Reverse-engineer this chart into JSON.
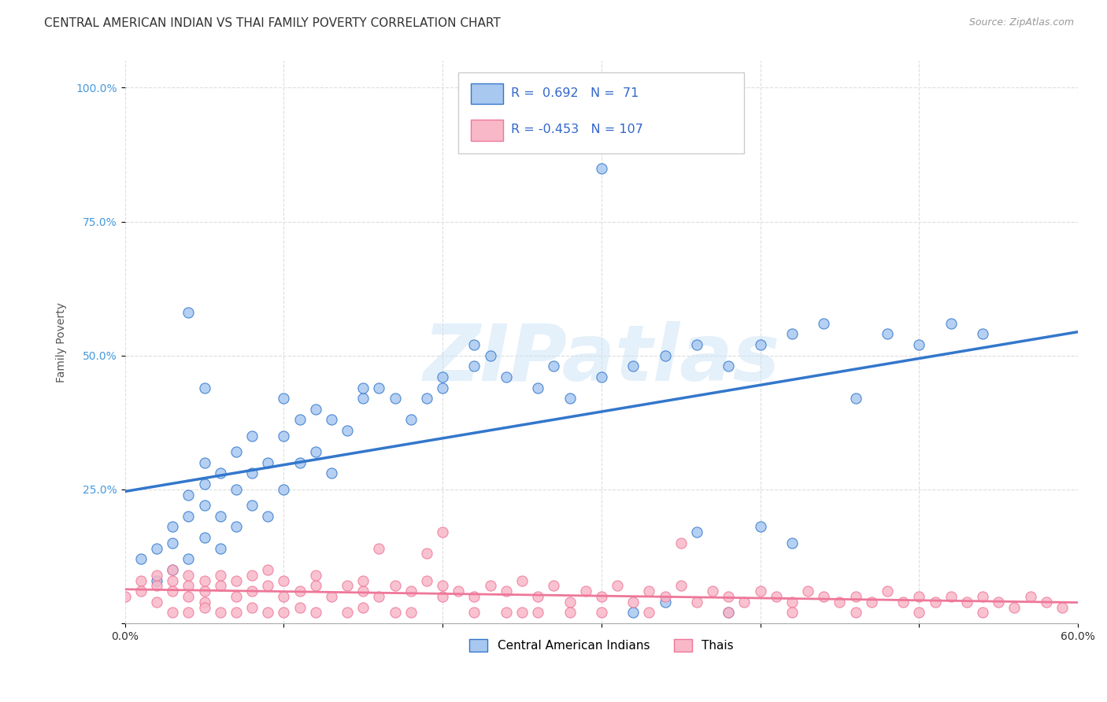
{
  "title": "CENTRAL AMERICAN INDIAN VS THAI FAMILY POVERTY CORRELATION CHART",
  "source": "Source: ZipAtlas.com",
  "ylabel": "Family Poverty",
  "xlim": [
    0.0,
    0.6
  ],
  "ylim": [
    0.0,
    1.05
  ],
  "xticks": [
    0.0,
    0.1,
    0.2,
    0.3,
    0.4,
    0.5,
    0.6
  ],
  "xticklabels": [
    "0.0%",
    "",
    "",
    "",
    "",
    "",
    "60.0%"
  ],
  "yticks": [
    0.0,
    0.25,
    0.5,
    0.75,
    1.0
  ],
  "yticklabels": [
    "",
    "25.0%",
    "50.0%",
    "75.0%",
    "100.0%"
  ],
  "legend_label1": "Central American Indians",
  "legend_label2": "Thais",
  "R1": 0.692,
  "N1": 71,
  "R2": -0.453,
  "N2": 107,
  "color1": "#a8c8f0",
  "color2": "#f8b8c8",
  "line_color1": "#3377cc",
  "line_color2": "#ee7799",
  "dashed_color": "#bbbbbb",
  "background_color": "#ffffff",
  "watermark": "ZIPatlas",
  "title_fontsize": 11,
  "axis_label_fontsize": 10,
  "tick_fontsize": 10,
  "scatter1_x": [
    0.01,
    0.02,
    0.02,
    0.03,
    0.03,
    0.03,
    0.04,
    0.04,
    0.04,
    0.04,
    0.05,
    0.05,
    0.05,
    0.05,
    0.05,
    0.06,
    0.06,
    0.06,
    0.07,
    0.07,
    0.07,
    0.08,
    0.08,
    0.08,
    0.09,
    0.09,
    0.1,
    0.1,
    0.1,
    0.11,
    0.11,
    0.12,
    0.12,
    0.13,
    0.13,
    0.14,
    0.15,
    0.15,
    0.16,
    0.17,
    0.18,
    0.19,
    0.2,
    0.2,
    0.22,
    0.22,
    0.23,
    0.24,
    0.26,
    0.27,
    0.28,
    0.3,
    0.32,
    0.34,
    0.36,
    0.38,
    0.4,
    0.42,
    0.44,
    0.46,
    0.48,
    0.5,
    0.52,
    0.54,
    0.3,
    0.32,
    0.34,
    0.36,
    0.38,
    0.4,
    0.42
  ],
  "scatter1_y": [
    0.12,
    0.08,
    0.14,
    0.1,
    0.15,
    0.18,
    0.12,
    0.2,
    0.24,
    0.58,
    0.16,
    0.22,
    0.26,
    0.3,
    0.44,
    0.14,
    0.2,
    0.28,
    0.18,
    0.25,
    0.32,
    0.22,
    0.28,
    0.35,
    0.2,
    0.3,
    0.25,
    0.35,
    0.42,
    0.3,
    0.38,
    0.32,
    0.4,
    0.28,
    0.38,
    0.36,
    0.42,
    0.44,
    0.44,
    0.42,
    0.38,
    0.42,
    0.44,
    0.46,
    0.48,
    0.52,
    0.5,
    0.46,
    0.44,
    0.48,
    0.42,
    0.46,
    0.48,
    0.5,
    0.52,
    0.48,
    0.52,
    0.54,
    0.56,
    0.42,
    0.54,
    0.52,
    0.56,
    0.54,
    0.85,
    0.02,
    0.04,
    0.17,
    0.02,
    0.18,
    0.15
  ],
  "scatter2_x": [
    0.0,
    0.01,
    0.01,
    0.02,
    0.02,
    0.02,
    0.03,
    0.03,
    0.03,
    0.04,
    0.04,
    0.04,
    0.05,
    0.05,
    0.05,
    0.06,
    0.06,
    0.07,
    0.07,
    0.08,
    0.08,
    0.09,
    0.09,
    0.1,
    0.1,
    0.11,
    0.12,
    0.12,
    0.13,
    0.14,
    0.15,
    0.15,
    0.16,
    0.17,
    0.18,
    0.19,
    0.2,
    0.2,
    0.21,
    0.22,
    0.23,
    0.24,
    0.25,
    0.26,
    0.27,
    0.28,
    0.29,
    0.3,
    0.31,
    0.32,
    0.33,
    0.34,
    0.35,
    0.36,
    0.37,
    0.38,
    0.39,
    0.4,
    0.41,
    0.42,
    0.43,
    0.44,
    0.45,
    0.46,
    0.47,
    0.48,
    0.49,
    0.5,
    0.51,
    0.52,
    0.53,
    0.54,
    0.55,
    0.56,
    0.57,
    0.58,
    0.59,
    0.03,
    0.04,
    0.05,
    0.06,
    0.07,
    0.08,
    0.09,
    0.1,
    0.11,
    0.12,
    0.14,
    0.15,
    0.16,
    0.17,
    0.18,
    0.19,
    0.2,
    0.22,
    0.24,
    0.25,
    0.26,
    0.28,
    0.3,
    0.33,
    0.35,
    0.38,
    0.42,
    0.46,
    0.5,
    0.54
  ],
  "scatter2_y": [
    0.05,
    0.08,
    0.06,
    0.04,
    0.07,
    0.09,
    0.06,
    0.08,
    0.1,
    0.05,
    0.07,
    0.09,
    0.04,
    0.06,
    0.08,
    0.07,
    0.09,
    0.05,
    0.08,
    0.06,
    0.09,
    0.07,
    0.1,
    0.05,
    0.08,
    0.06,
    0.07,
    0.09,
    0.05,
    0.07,
    0.06,
    0.08,
    0.05,
    0.07,
    0.06,
    0.08,
    0.05,
    0.07,
    0.06,
    0.05,
    0.07,
    0.06,
    0.08,
    0.05,
    0.07,
    0.04,
    0.06,
    0.05,
    0.07,
    0.04,
    0.06,
    0.05,
    0.07,
    0.04,
    0.06,
    0.05,
    0.04,
    0.06,
    0.05,
    0.04,
    0.06,
    0.05,
    0.04,
    0.05,
    0.04,
    0.06,
    0.04,
    0.05,
    0.04,
    0.05,
    0.04,
    0.05,
    0.04,
    0.03,
    0.05,
    0.04,
    0.03,
    0.02,
    0.02,
    0.03,
    0.02,
    0.02,
    0.03,
    0.02,
    0.02,
    0.03,
    0.02,
    0.02,
    0.03,
    0.14,
    0.02,
    0.02,
    0.13,
    0.17,
    0.02,
    0.02,
    0.02,
    0.02,
    0.02,
    0.02,
    0.02,
    0.15,
    0.02,
    0.02,
    0.02,
    0.02,
    0.02
  ]
}
